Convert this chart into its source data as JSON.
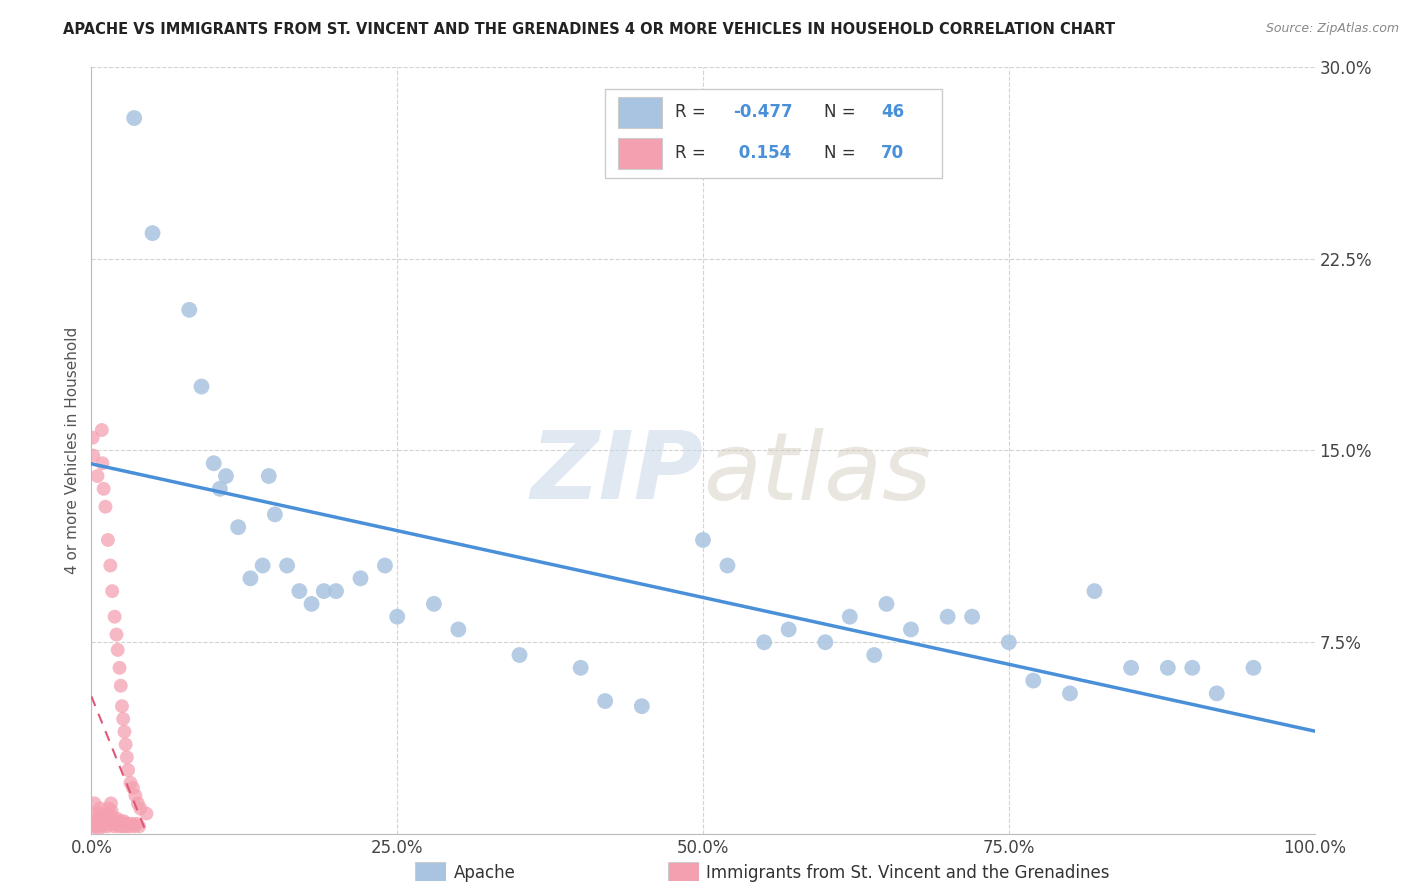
{
  "title": "APACHE VS IMMIGRANTS FROM ST. VINCENT AND THE GRENADINES 4 OR MORE VEHICLES IN HOUSEHOLD CORRELATION CHART",
  "source": "Source: ZipAtlas.com",
  "ylabel": "4 or more Vehicles in Household",
  "xlim": [
    0,
    100
  ],
  "ylim": [
    0,
    30
  ],
  "yticks": [
    0,
    7.5,
    15.0,
    22.5,
    30.0
  ],
  "xticks": [
    0,
    25,
    50,
    75,
    100
  ],
  "xtick_labels": [
    "0.0%",
    "25.0%",
    "50.0%",
    "75.0%",
    "100.0%"
  ],
  "ytick_labels": [
    "",
    "7.5%",
    "15.0%",
    "22.5%",
    "30.0%"
  ],
  "apache_R": -0.477,
  "apache_N": 46,
  "svg_R": 0.154,
  "svg_N": 70,
  "apache_color": "#a8c4e0",
  "svg_color": "#f4a0b0",
  "trendline_apache_color": "#4a90d9",
  "trendline_svg_color": "#e05878",
  "background_color": "#ffffff",
  "apache_x": [
    3.5,
    5.0,
    8.0,
    9.0,
    10.0,
    10.5,
    11.0,
    12.0,
    13.0,
    14.0,
    14.5,
    15.0,
    16.0,
    17.0,
    18.0,
    19.0,
    20.0,
    22.0,
    24.0,
    25.0,
    28.0,
    30.0,
    35.0,
    40.0,
    42.0,
    45.0,
    50.0,
    52.0,
    55.0,
    57.0,
    60.0,
    62.0,
    64.0,
    65.0,
    67.0,
    70.0,
    72.0,
    75.0,
    77.0,
    80.0,
    82.0,
    85.0,
    88.0,
    90.0,
    92.0,
    95.0
  ],
  "apache_y": [
    28.0,
    23.5,
    20.5,
    17.5,
    14.5,
    13.5,
    14.0,
    12.0,
    10.0,
    10.5,
    14.0,
    12.5,
    10.5,
    9.5,
    9.0,
    9.5,
    9.5,
    10.0,
    10.5,
    8.5,
    9.0,
    8.0,
    7.0,
    6.5,
    5.2,
    5.0,
    11.5,
    10.5,
    7.5,
    8.0,
    7.5,
    8.5,
    7.0,
    9.0,
    8.0,
    8.5,
    8.5,
    7.5,
    6.0,
    5.5,
    9.5,
    6.5,
    6.5,
    6.5,
    5.5,
    6.5
  ],
  "svg_x": [
    0.1,
    0.15,
    0.2,
    0.25,
    0.3,
    0.35,
    0.4,
    0.45,
    0.5,
    0.55,
    0.6,
    0.65,
    0.7,
    0.75,
    0.8,
    0.85,
    0.9,
    0.95,
    1.0,
    1.05,
    1.1,
    1.15,
    1.2,
    1.25,
    1.3,
    1.35,
    1.4,
    1.45,
    1.5,
    1.55,
    1.6,
    1.65,
    1.7,
    1.75,
    1.8,
    1.85,
    1.9,
    1.95,
    2.0,
    2.05,
    2.1,
    2.15,
    2.2,
    2.25,
    2.3,
    2.35,
    2.4,
    2.45,
    2.5,
    2.55,
    2.6,
    2.65,
    2.7,
    2.75,
    2.8,
    2.85,
    2.9,
    2.95,
    3.0,
    3.1,
    3.2,
    3.3,
    3.4,
    3.5,
    3.6,
    3.7,
    3.8,
    3.9,
    4.0,
    4.5
  ],
  "svg_y": [
    15.5,
    14.8,
    0.3,
    1.2,
    0.8,
    0.5,
    0.4,
    0.3,
    14.0,
    0.2,
    0.5,
    0.8,
    1.0,
    0.6,
    0.4,
    15.8,
    14.5,
    0.3,
    13.5,
    0.4,
    0.5,
    12.8,
    0.6,
    0.4,
    0.3,
    11.5,
    1.0,
    0.8,
    0.5,
    10.5,
    1.2,
    0.9,
    9.5,
    0.6,
    0.4,
    0.3,
    8.5,
    0.5,
    0.4,
    7.8,
    0.6,
    7.2,
    0.4,
    0.3,
    6.5,
    0.5,
    5.8,
    0.4,
    5.0,
    0.3,
    4.5,
    0.5,
    4.0,
    0.4,
    3.5,
    0.3,
    3.0,
    0.4,
    2.5,
    0.3,
    2.0,
    0.4,
    1.8,
    0.3,
    1.5,
    0.4,
    1.2,
    0.3,
    1.0,
    0.8
  ]
}
